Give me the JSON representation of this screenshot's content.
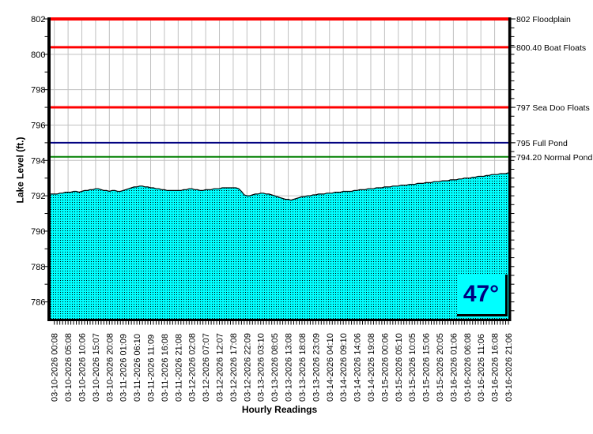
{
  "chart_data": {
    "type": "area",
    "title": "",
    "xlabel": "Hourly Readings",
    "ylabel": "Lake Level (ft.)",
    "ylim": [
      785,
      802
    ],
    "y_major_ticks": [
      786,
      788,
      790,
      792,
      794,
      796,
      798,
      800,
      802
    ],
    "grid": true,
    "fill_color": "#00ffff",
    "line_color": "#000000",
    "gridline_color": "#c0c0c0",
    "temperature": "47°",
    "reference_lines": [
      {
        "value": 802.0,
        "label": "802 Floodplain",
        "color": "#ff0000",
        "width": 4
      },
      {
        "value": 800.4,
        "label": "800.40 Boat Floats",
        "color": "#ff0000",
        "width": 3
      },
      {
        "value": 797.0,
        "label": "797 Sea Doo Floats",
        "color": "#ff0000",
        "width": 3
      },
      {
        "value": 795.0,
        "label": "795 Full Pond",
        "color": "#000080",
        "width": 2
      },
      {
        "value": 794.2,
        "label": "794.20 Normal Pond",
        "color": "#008000",
        "width": 2
      }
    ],
    "x_tick_labels": [
      "03-10-2026 00:08",
      "03-10-2026 05:08",
      "03-10-2026 10:06",
      "03-10-2026 15:07",
      "03-10-2026 20:08",
      "03-11-2026 01:09",
      "03-11-2026 06:10",
      "03-11-2026 11:09",
      "03-11-2026 16:08",
      "03-11-2026 21:08",
      "03-12-2026 02:08",
      "03-12-2026 07:07",
      "03-12-2026 12:07",
      "03-12-2026 17:08",
      "03-12-2026 22:09",
      "03-13-2026 03:10",
      "03-13-2026 08:05",
      "03-13-2026 13:08",
      "03-13-2026 18:08",
      "03-13-2026 23:09",
      "03-14-2026 04:10",
      "03-14-2026 09:10",
      "03-14-2026 14:06",
      "03-14-2026 19:08",
      "03-15-2026 00:06",
      "03-15-2026 05:10",
      "03-15-2026 10:05",
      "03-15-2026 15:06",
      "03-15-2026 20:05",
      "03-16-2026 01:06",
      "03-16-2026 06:08",
      "03-16-2026 11:06",
      "03-16-2026 16:08",
      "03-16-2026 21:06"
    ],
    "readings_per_label": 5,
    "values": [
      792.1,
      792.1,
      792.15,
      792.15,
      792.2,
      792.2,
      792.2,
      792.25,
      792.25,
      792.2,
      792.25,
      792.3,
      792.3,
      792.35,
      792.35,
      792.4,
      792.4,
      792.35,
      792.3,
      792.3,
      792.25,
      792.3,
      792.3,
      792.25,
      792.25,
      792.3,
      792.35,
      792.4,
      792.45,
      792.5,
      792.5,
      792.55,
      792.55,
      792.5,
      792.5,
      792.45,
      792.45,
      792.4,
      792.4,
      792.35,
      792.35,
      792.3,
      792.3,
      792.3,
      792.3,
      792.3,
      792.3,
      792.35,
      792.35,
      792.4,
      792.4,
      792.35,
      792.35,
      792.3,
      792.3,
      792.35,
      792.35,
      792.35,
      792.4,
      792.4,
      792.4,
      792.45,
      792.45,
      792.45,
      792.45,
      792.45,
      792.45,
      792.4,
      792.25,
      792.05,
      792.0,
      792.0,
      792.05,
      792.1,
      792.1,
      792.15,
      792.15,
      792.1,
      792.1,
      792.05,
      792.0,
      791.95,
      791.9,
      791.85,
      791.8,
      791.8,
      791.75,
      791.8,
      791.85,
      791.9,
      791.95,
      791.95,
      792.0,
      792.0,
      792.05,
      792.05,
      792.1,
      792.1,
      792.1,
      792.15,
      792.15,
      792.15,
      792.2,
      792.2,
      792.2,
      792.25,
      792.25,
      792.25,
      792.25,
      792.3,
      792.3,
      792.35,
      792.35,
      792.35,
      792.4,
      792.4,
      792.4,
      792.45,
      792.45,
      792.45,
      792.5,
      792.5,
      792.5,
      792.55,
      792.55,
      792.55,
      792.6,
      792.6,
      792.6,
      792.65,
      792.65,
      792.65,
      792.7,
      792.7,
      792.7,
      792.75,
      792.75,
      792.75,
      792.8,
      792.8,
      792.8,
      792.85,
      792.85,
      792.85,
      792.9,
      792.9,
      792.9,
      792.95,
      792.95,
      793.0,
      793.0,
      793.0,
      793.05,
      793.05,
      793.1,
      793.1,
      793.1,
      793.15,
      793.15,
      793.2,
      793.2,
      793.2,
      793.25,
      793.25,
      793.25,
      793.3
    ]
  }
}
